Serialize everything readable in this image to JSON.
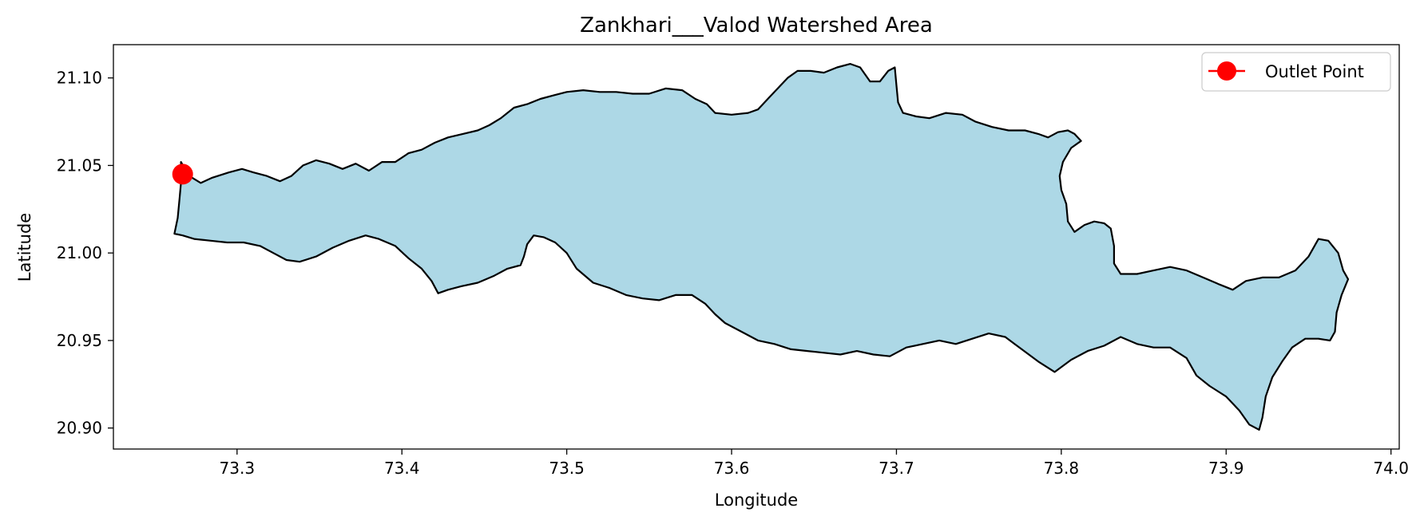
{
  "chart_data": {
    "type": "map",
    "title": "Zankhari___Valod Watershed Area",
    "xlabel": "Longitude",
    "ylabel": "Latitude",
    "xlim": [
      73.225,
      74.005
    ],
    "ylim": [
      20.888,
      21.119
    ],
    "xticks": [
      73.3,
      73.4,
      73.5,
      73.6,
      73.7,
      73.8,
      73.9,
      74.0
    ],
    "xtick_labels": [
      "73.3",
      "73.4",
      "73.5",
      "73.6",
      "73.7",
      "73.8",
      "73.9",
      "74.0"
    ],
    "yticks": [
      20.9,
      20.95,
      21.0,
      21.05,
      21.1
    ],
    "ytick_labels": [
      "20.90",
      "20.95",
      "21.00",
      "21.05",
      "21.10"
    ],
    "grid": false,
    "legend_placement": "top-right",
    "legend": [
      {
        "label": "Outlet Point",
        "color": "#ff0000",
        "marker": "circle"
      }
    ],
    "watershed": {
      "fill_color": "#add8e6",
      "edge_color": "#000000",
      "boundary": [
        [
          73.266,
          21.052
        ],
        [
          73.271,
          21.044
        ],
        [
          73.278,
          21.04
        ],
        [
          73.285,
          21.043
        ],
        [
          73.295,
          21.046
        ],
        [
          73.303,
          21.048
        ],
        [
          73.31,
          21.046
        ],
        [
          73.318,
          21.044
        ],
        [
          73.326,
          21.041
        ],
        [
          73.333,
          21.044
        ],
        [
          73.34,
          21.05
        ],
        [
          73.348,
          21.053
        ],
        [
          73.356,
          21.051
        ],
        [
          73.364,
          21.048
        ],
        [
          73.372,
          21.051
        ],
        [
          73.38,
          21.047
        ],
        [
          73.388,
          21.052
        ],
        [
          73.396,
          21.052
        ],
        [
          73.404,
          21.057
        ],
        [
          73.412,
          21.059
        ],
        [
          73.42,
          21.063
        ],
        [
          73.428,
          21.066
        ],
        [
          73.437,
          21.068
        ],
        [
          73.446,
          21.07
        ],
        [
          73.453,
          21.073
        ],
        [
          73.46,
          21.077
        ],
        [
          73.468,
          21.083
        ],
        [
          73.476,
          21.085
        ],
        [
          73.484,
          21.088
        ],
        [
          73.492,
          21.09
        ],
        [
          73.5,
          21.092
        ],
        [
          73.51,
          21.093
        ],
        [
          73.52,
          21.092
        ],
        [
          73.53,
          21.092
        ],
        [
          73.54,
          21.091
        ],
        [
          73.55,
          21.091
        ],
        [
          73.56,
          21.094
        ],
        [
          73.57,
          21.093
        ],
        [
          73.578,
          21.088
        ],
        [
          73.585,
          21.085
        ],
        [
          73.59,
          21.08
        ],
        [
          73.6,
          21.079
        ],
        [
          73.61,
          21.08
        ],
        [
          73.616,
          21.082
        ],
        [
          73.622,
          21.088
        ],
        [
          73.628,
          21.094
        ],
        [
          73.634,
          21.1
        ],
        [
          73.64,
          21.104
        ],
        [
          73.648,
          21.104
        ],
        [
          73.656,
          21.103
        ],
        [
          73.664,
          21.106
        ],
        [
          73.672,
          21.108
        ],
        [
          73.678,
          21.106
        ],
        [
          73.684,
          21.098
        ],
        [
          73.69,
          21.098
        ],
        [
          73.695,
          21.104
        ],
        [
          73.699,
          21.106
        ],
        [
          73.7,
          21.096
        ],
        [
          73.701,
          21.086
        ],
        [
          73.704,
          21.08
        ],
        [
          73.712,
          21.078
        ],
        [
          73.72,
          21.077
        ],
        [
          73.73,
          21.08
        ],
        [
          73.74,
          21.079
        ],
        [
          73.748,
          21.075
        ],
        [
          73.758,
          21.072
        ],
        [
          73.768,
          21.07
        ],
        [
          73.778,
          21.07
        ],
        [
          73.786,
          21.068
        ],
        [
          73.792,
          21.066
        ],
        [
          73.798,
          21.069
        ],
        [
          73.804,
          21.07
        ],
        [
          73.808,
          21.068
        ],
        [
          73.812,
          21.064
        ],
        [
          73.806,
          21.06
        ],
        [
          73.801,
          21.052
        ],
        [
          73.799,
          21.044
        ],
        [
          73.8,
          21.036
        ],
        [
          73.803,
          21.028
        ],
        [
          73.804,
          21.018
        ],
        [
          73.808,
          21.012
        ],
        [
          73.814,
          21.016
        ],
        [
          73.82,
          21.018
        ],
        [
          73.826,
          21.017
        ],
        [
          73.83,
          21.014
        ],
        [
          73.832,
          21.004
        ],
        [
          73.832,
          20.994
        ],
        [
          73.836,
          20.988
        ],
        [
          73.846,
          20.988
        ],
        [
          73.856,
          20.99
        ],
        [
          73.866,
          20.992
        ],
        [
          73.876,
          20.99
        ],
        [
          73.886,
          20.986
        ],
        [
          73.896,
          20.982
        ],
        [
          73.904,
          20.979
        ],
        [
          73.912,
          20.984
        ],
        [
          73.922,
          20.986
        ],
        [
          73.932,
          20.986
        ],
        [
          73.942,
          20.99
        ],
        [
          73.95,
          20.998
        ],
        [
          73.956,
          21.008
        ],
        [
          73.962,
          21.007
        ],
        [
          73.968,
          21.0
        ],
        [
          73.971,
          20.99
        ],
        [
          73.974,
          20.985
        ],
        [
          73.97,
          20.976
        ],
        [
          73.967,
          20.966
        ],
        [
          73.966,
          20.955
        ],
        [
          73.963,
          20.95
        ],
        [
          73.956,
          20.951
        ],
        [
          73.948,
          20.951
        ],
        [
          73.94,
          20.946
        ],
        [
          73.934,
          20.938
        ],
        [
          73.928,
          20.929
        ],
        [
          73.924,
          20.918
        ],
        [
          73.922,
          20.906
        ],
        [
          73.92,
          20.899
        ],
        [
          73.914,
          20.902
        ],
        [
          73.908,
          20.91
        ],
        [
          73.9,
          20.918
        ],
        [
          73.89,
          20.924
        ],
        [
          73.882,
          20.93
        ],
        [
          73.876,
          20.94
        ],
        [
          73.866,
          20.946
        ],
        [
          73.856,
          20.946
        ],
        [
          73.846,
          20.948
        ],
        [
          73.836,
          20.952
        ],
        [
          73.826,
          20.947
        ],
        [
          73.816,
          20.944
        ],
        [
          73.806,
          20.939
        ],
        [
          73.796,
          20.932
        ],
        [
          73.786,
          20.938
        ],
        [
          73.776,
          20.945
        ],
        [
          73.766,
          20.952
        ],
        [
          73.756,
          20.954
        ],
        [
          73.746,
          20.951
        ],
        [
          73.736,
          20.948
        ],
        [
          73.726,
          20.95
        ],
        [
          73.716,
          20.948
        ],
        [
          73.706,
          20.946
        ],
        [
          73.696,
          20.941
        ],
        [
          73.686,
          20.942
        ],
        [
          73.676,
          20.944
        ],
        [
          73.666,
          20.942
        ],
        [
          73.656,
          20.943
        ],
        [
          73.646,
          20.944
        ],
        [
          73.636,
          20.945
        ],
        [
          73.626,
          20.948
        ],
        [
          73.616,
          20.95
        ],
        [
          73.606,
          20.955
        ],
        [
          73.596,
          20.96
        ],
        [
          73.59,
          20.965
        ],
        [
          73.584,
          20.971
        ],
        [
          73.576,
          20.976
        ],
        [
          73.566,
          20.976
        ],
        [
          73.556,
          20.973
        ],
        [
          73.546,
          20.974
        ],
        [
          73.536,
          20.976
        ],
        [
          73.526,
          20.98
        ],
        [
          73.516,
          20.983
        ],
        [
          73.506,
          20.991
        ],
        [
          73.5,
          21.0
        ],
        [
          73.493,
          21.006
        ],
        [
          73.486,
          21.009
        ],
        [
          73.48,
          21.01
        ],
        [
          73.476,
          21.005
        ],
        [
          73.474,
          20.998
        ],
        [
          73.472,
          20.993
        ],
        [
          73.464,
          20.991
        ],
        [
          73.456,
          20.987
        ],
        [
          73.446,
          20.983
        ],
        [
          73.436,
          20.981
        ],
        [
          73.428,
          20.979
        ],
        [
          73.422,
          20.977
        ],
        [
          73.418,
          20.984
        ],
        [
          73.412,
          20.991
        ],
        [
          73.404,
          20.997
        ],
        [
          73.396,
          21.004
        ],
        [
          73.386,
          21.008
        ],
        [
          73.378,
          21.01
        ],
        [
          73.368,
          21.007
        ],
        [
          73.358,
          21.003
        ],
        [
          73.348,
          20.998
        ],
        [
          73.338,
          20.995
        ],
        [
          73.33,
          20.996
        ],
        [
          73.322,
          21.0
        ],
        [
          73.314,
          21.004
        ],
        [
          73.304,
          21.006
        ],
        [
          73.294,
          21.006
        ],
        [
          73.284,
          21.007
        ],
        [
          73.274,
          21.008
        ],
        [
          73.267,
          21.01
        ],
        [
          73.262,
          21.011
        ],
        [
          73.264,
          21.02
        ],
        [
          73.265,
          21.03
        ],
        [
          73.266,
          21.04
        ]
      ]
    },
    "outlet_point": {
      "lon": 73.267,
      "lat": 21.045,
      "color": "#ff0000"
    }
  }
}
